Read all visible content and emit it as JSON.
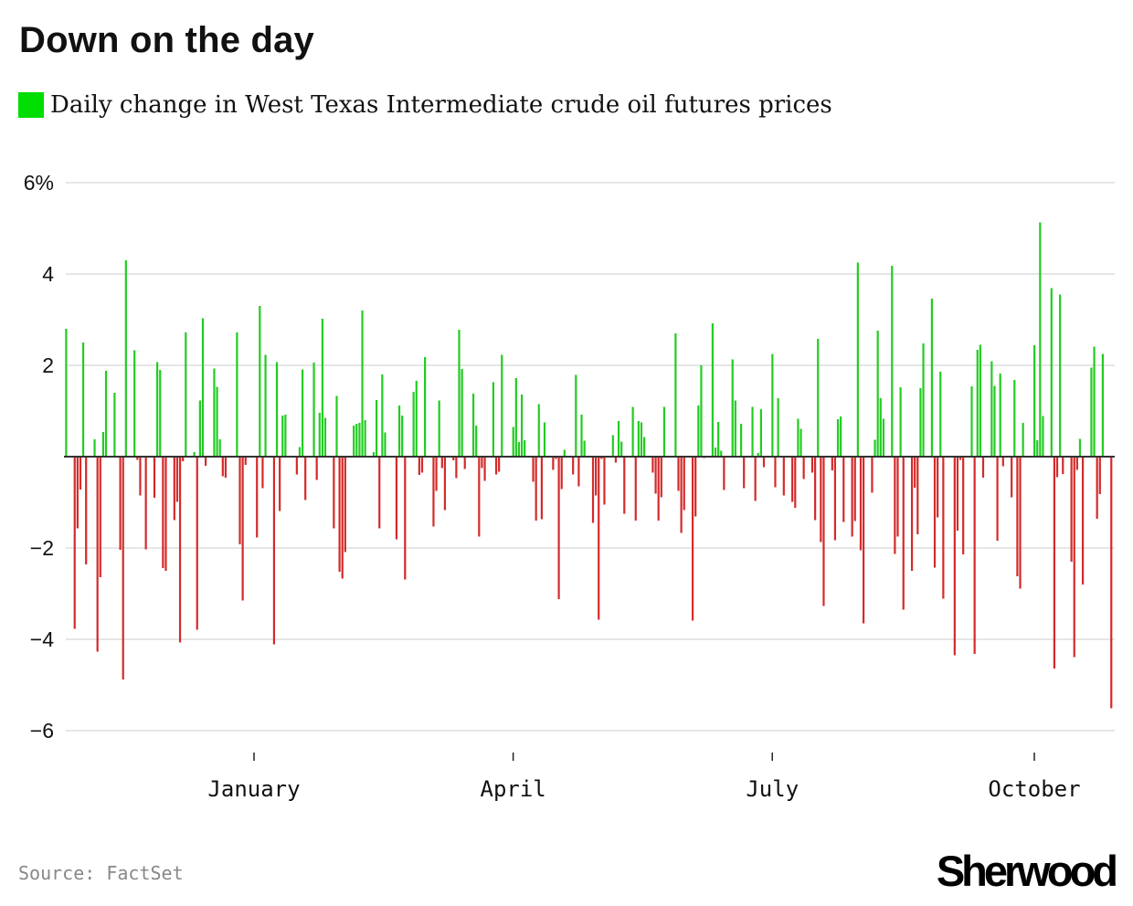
{
  "title": "Down on the day",
  "legend": {
    "label": "Daily change in West Texas Intermediate crude oil futures prices",
    "color": "#00dd00"
  },
  "source": "Source: FactSet",
  "logo": "Sherwood",
  "chart_data": {
    "type": "bar",
    "title": "Down on the day",
    "series_label": "Daily change in West Texas Intermediate crude oil futures prices",
    "xlabel": "",
    "ylabel": "",
    "ylim": [
      -6,
      6
    ],
    "xlim": [
      "2023-10-27",
      "2024-10-28"
    ],
    "grid": true,
    "legend_position": "top-left",
    "colors": {
      "positive": "#22cc22",
      "negative": "#d42a2a",
      "zero_line": "#333333",
      "grid": "#e6e6e6"
    },
    "y_ticks": [
      {
        "value": 6,
        "label": "6%"
      },
      {
        "value": 4,
        "label": "4"
      },
      {
        "value": 2,
        "label": "2"
      },
      {
        "value": -2,
        "label": "−2"
      },
      {
        "value": -4,
        "label": "−4"
      },
      {
        "value": -6,
        "label": "−6"
      }
    ],
    "x_ticks": [
      {
        "date": "2024-01-01",
        "label": "January"
      },
      {
        "date": "2024-04-01",
        "label": "April"
      },
      {
        "date": "2024-07-01",
        "label": "July"
      },
      {
        "date": "2024-10-01",
        "label": "October"
      }
    ],
    "points": [
      [
        "2023-10-27",
        2.8
      ],
      [
        "2023-10-30",
        -3.77
      ],
      [
        "2023-10-31",
        -1.57
      ],
      [
        "2023-11-01",
        -0.72
      ],
      [
        "2023-11-02",
        2.5
      ],
      [
        "2023-11-03",
        -2.36
      ],
      [
        "2023-11-06",
        0.38
      ],
      [
        "2023-11-07",
        -4.27
      ],
      [
        "2023-11-08",
        -2.64
      ],
      [
        "2023-11-09",
        0.54
      ],
      [
        "2023-11-10",
        1.88
      ],
      [
        "2023-11-13",
        1.4
      ],
      [
        "2023-11-15",
        -2.04
      ],
      [
        "2023-11-16",
        -4.88
      ],
      [
        "2023-11-17",
        4.3
      ],
      [
        "2023-11-20",
        2.33
      ],
      [
        "2023-11-21",
        -0.07
      ],
      [
        "2023-11-22",
        -0.85
      ],
      [
        "2023-11-24",
        -2.03
      ],
      [
        "2023-11-27",
        -0.9
      ],
      [
        "2023-11-28",
        2.07
      ],
      [
        "2023-11-29",
        1.9
      ],
      [
        "2023-11-30",
        -2.44
      ],
      [
        "2023-12-01",
        -2.5
      ],
      [
        "2023-12-04",
        -1.39
      ],
      [
        "2023-12-05",
        -0.99
      ],
      [
        "2023-12-06",
        -4.07
      ],
      [
        "2023-12-07",
        -0.1
      ],
      [
        "2023-12-08",
        2.72
      ],
      [
        "2023-12-11",
        0.1
      ],
      [
        "2023-12-12",
        -3.79
      ],
      [
        "2023-12-13",
        1.23
      ],
      [
        "2023-12-14",
        3.03
      ],
      [
        "2023-12-15",
        -0.2
      ],
      [
        "2023-12-18",
        1.93
      ],
      [
        "2023-12-19",
        1.53
      ],
      [
        "2023-12-20",
        0.38
      ],
      [
        "2023-12-21",
        -0.43
      ],
      [
        "2023-12-22",
        -0.46
      ],
      [
        "2023-12-26",
        2.72
      ],
      [
        "2023-12-27",
        -1.92
      ],
      [
        "2023-12-28",
        -3.15
      ],
      [
        "2023-12-29",
        -0.18
      ],
      [
        "2024-01-02",
        -1.77
      ],
      [
        "2024-01-03",
        3.3
      ],
      [
        "2024-01-04",
        -0.69
      ],
      [
        "2024-01-05",
        2.23
      ],
      [
        "2024-01-08",
        -4.11
      ],
      [
        "2024-01-09",
        2.07
      ],
      [
        "2024-01-10",
        -1.19
      ],
      [
        "2024-01-11",
        0.9
      ],
      [
        "2024-01-12",
        0.92
      ],
      [
        "2024-01-16",
        -0.39
      ],
      [
        "2024-01-17",
        0.21
      ],
      [
        "2024-01-18",
        1.91
      ],
      [
        "2024-01-19",
        -0.95
      ],
      [
        "2024-01-22",
        2.06
      ],
      [
        "2024-01-23",
        -0.51
      ],
      [
        "2024-01-24",
        0.96
      ],
      [
        "2024-01-25",
        3.02
      ],
      [
        "2024-01-26",
        0.85
      ],
      [
        "2024-01-29",
        -1.57
      ],
      [
        "2024-01-30",
        1.33
      ],
      [
        "2024-01-31",
        -2.52
      ],
      [
        "2024-02-01",
        -2.67
      ],
      [
        "2024-02-02",
        -2.09
      ],
      [
        "2024-02-05",
        0.68
      ],
      [
        "2024-02-06",
        0.72
      ],
      [
        "2024-02-07",
        0.74
      ],
      [
        "2024-02-08",
        3.2
      ],
      [
        "2024-02-09",
        0.8
      ],
      [
        "2024-02-12",
        0.1
      ],
      [
        "2024-02-13",
        1.24
      ],
      [
        "2024-02-14",
        -1.57
      ],
      [
        "2024-02-15",
        1.8
      ],
      [
        "2024-02-16",
        0.53
      ],
      [
        "2024-02-20",
        -1.81
      ],
      [
        "2024-02-21",
        1.12
      ],
      [
        "2024-02-22",
        0.9
      ],
      [
        "2024-02-23",
        -2.69
      ],
      [
        "2024-02-26",
        1.42
      ],
      [
        "2024-02-27",
        1.66
      ],
      [
        "2024-02-28",
        -0.4
      ],
      [
        "2024-02-29",
        -0.35
      ],
      [
        "2024-03-01",
        2.18
      ],
      [
        "2024-03-04",
        -1.53
      ],
      [
        "2024-03-05",
        -0.75
      ],
      [
        "2024-03-06",
        1.23
      ],
      [
        "2024-03-07",
        -0.25
      ],
      [
        "2024-03-08",
        -1.17
      ],
      [
        "2024-03-11",
        -0.08
      ],
      [
        "2024-03-12",
        -0.47
      ],
      [
        "2024-03-13",
        2.78
      ],
      [
        "2024-03-14",
        1.92
      ],
      [
        "2024-03-15",
        -0.27
      ],
      [
        "2024-03-18",
        1.38
      ],
      [
        "2024-03-19",
        0.68
      ],
      [
        "2024-03-20",
        -1.75
      ],
      [
        "2024-03-21",
        -0.25
      ],
      [
        "2024-03-22",
        -0.53
      ],
      [
        "2024-03-25",
        1.63
      ],
      [
        "2024-03-26",
        -0.39
      ],
      [
        "2024-03-27",
        -0.33
      ],
      [
        "2024-03-28",
        2.23
      ],
      [
        "2024-04-01",
        0.65
      ],
      [
        "2024-04-02",
        1.72
      ],
      [
        "2024-04-03",
        0.32
      ],
      [
        "2024-04-04",
        1.36
      ],
      [
        "2024-04-05",
        0.36
      ],
      [
        "2024-04-08",
        -0.55
      ],
      [
        "2024-04-09",
        -1.4
      ],
      [
        "2024-04-10",
        1.15
      ],
      [
        "2024-04-11",
        -1.37
      ],
      [
        "2024-04-12",
        0.75
      ],
      [
        "2024-04-15",
        -0.29
      ],
      [
        "2024-04-16",
        -0.05
      ],
      [
        "2024-04-17",
        -3.12
      ],
      [
        "2024-04-18",
        -0.71
      ],
      [
        "2024-04-19",
        0.15
      ],
      [
        "2024-04-22",
        -0.39
      ],
      [
        "2024-04-23",
        1.79
      ],
      [
        "2024-04-24",
        -0.65
      ],
      [
        "2024-04-25",
        0.92
      ],
      [
        "2024-04-26",
        0.35
      ],
      [
        "2024-04-29",
        -1.45
      ],
      [
        "2024-04-30",
        -0.85
      ],
      [
        "2024-05-01",
        -3.57
      ],
      [
        "2024-05-02",
        -0.05
      ],
      [
        "2024-05-03",
        -1.05
      ],
      [
        "2024-05-06",
        0.47
      ],
      [
        "2024-05-07",
        -0.13
      ],
      [
        "2024-05-08",
        0.78
      ],
      [
        "2024-05-09",
        0.33
      ],
      [
        "2024-05-10",
        -1.25
      ],
      [
        "2024-05-13",
        1.09
      ],
      [
        "2024-05-14",
        -1.4
      ],
      [
        "2024-05-15",
        0.78
      ],
      [
        "2024-05-16",
        0.75
      ],
      [
        "2024-05-17",
        0.43
      ],
      [
        "2024-05-20",
        -0.35
      ],
      [
        "2024-05-21",
        -0.81
      ],
      [
        "2024-05-22",
        -1.4
      ],
      [
        "2024-05-23",
        -0.89
      ],
      [
        "2024-05-24",
        1.09
      ],
      [
        "2024-05-28",
        2.7
      ],
      [
        "2024-05-29",
        -0.75
      ],
      [
        "2024-05-30",
        -1.67
      ],
      [
        "2024-05-31",
        -1.17
      ],
      [
        "2024-06-03",
        -3.59
      ],
      [
        "2024-06-04",
        -1.31
      ],
      [
        "2024-06-05",
        1.12
      ],
      [
        "2024-06-06",
        2.0
      ],
      [
        "2024-06-07",
        -0.03
      ],
      [
        "2024-06-10",
        2.92
      ],
      [
        "2024-06-11",
        0.2
      ],
      [
        "2024-06-12",
        0.76
      ],
      [
        "2024-06-13",
        0.13
      ],
      [
        "2024-06-14",
        -0.73
      ],
      [
        "2024-06-17",
        2.13
      ],
      [
        "2024-06-18",
        1.23
      ],
      [
        "2024-06-20",
        0.72
      ],
      [
        "2024-06-21",
        -0.69
      ],
      [
        "2024-06-24",
        1.09
      ],
      [
        "2024-06-25",
        -0.97
      ],
      [
        "2024-06-26",
        0.08
      ],
      [
        "2024-06-27",
        1.04
      ],
      [
        "2024-06-28",
        -0.23
      ],
      [
        "2024-07-01",
        2.25
      ],
      [
        "2024-07-02",
        -0.67
      ],
      [
        "2024-07-03",
        1.28
      ],
      [
        "2024-07-05",
        -0.85
      ],
      [
        "2024-07-08",
        -0.99
      ],
      [
        "2024-07-09",
        -1.12
      ],
      [
        "2024-07-10",
        0.83
      ],
      [
        "2024-07-11",
        0.61
      ],
      [
        "2024-07-12",
        -0.49
      ],
      [
        "2024-07-15",
        -0.35
      ],
      [
        "2024-07-16",
        -1.39
      ],
      [
        "2024-07-17",
        2.58
      ],
      [
        "2024-07-18",
        -1.87
      ],
      [
        "2024-07-19",
        -3.27
      ],
      [
        "2024-07-22",
        -0.3
      ],
      [
        "2024-07-23",
        -1.83
      ],
      [
        "2024-07-24",
        0.82
      ],
      [
        "2024-07-25",
        0.88
      ],
      [
        "2024-07-26",
        -1.43
      ],
      [
        "2024-07-29",
        -1.75
      ],
      [
        "2024-07-30",
        -1.41
      ],
      [
        "2024-07-31",
        4.25
      ],
      [
        "2024-08-01",
        -2.05
      ],
      [
        "2024-08-02",
        -3.65
      ],
      [
        "2024-08-05",
        -0.79
      ],
      [
        "2024-08-06",
        0.37
      ],
      [
        "2024-08-07",
        2.76
      ],
      [
        "2024-08-08",
        1.28
      ],
      [
        "2024-08-09",
        0.83
      ],
      [
        "2024-08-12",
        4.18
      ],
      [
        "2024-08-13",
        -2.13
      ],
      [
        "2024-08-14",
        -1.75
      ],
      [
        "2024-08-15",
        1.52
      ],
      [
        "2024-08-16",
        -3.35
      ],
      [
        "2024-08-19",
        -2.5
      ],
      [
        "2024-08-20",
        -0.68
      ],
      [
        "2024-08-21",
        -1.7
      ],
      [
        "2024-08-22",
        1.5
      ],
      [
        "2024-08-23",
        2.48
      ],
      [
        "2024-08-26",
        3.46
      ],
      [
        "2024-08-27",
        -2.43
      ],
      [
        "2024-08-28",
        -1.33
      ],
      [
        "2024-08-29",
        1.86
      ],
      [
        "2024-08-30",
        -3.11
      ],
      [
        "2024-09-03",
        -4.35
      ],
      [
        "2024-09-04",
        -1.62
      ],
      [
        "2024-09-05",
        -0.07
      ],
      [
        "2024-09-06",
        -2.14
      ],
      [
        "2024-09-09",
        1.54
      ],
      [
        "2024-09-10",
        -4.32
      ],
      [
        "2024-09-11",
        2.34
      ],
      [
        "2024-09-12",
        2.45
      ],
      [
        "2024-09-13",
        -0.46
      ],
      [
        "2024-09-16",
        2.09
      ],
      [
        "2024-09-17",
        1.55
      ],
      [
        "2024-09-18",
        -1.84
      ],
      [
        "2024-09-19",
        1.82
      ],
      [
        "2024-09-20",
        -0.21
      ],
      [
        "2024-09-23",
        -0.89
      ],
      [
        "2024-09-24",
        1.68
      ],
      [
        "2024-09-25",
        -2.62
      ],
      [
        "2024-09-26",
        -2.89
      ],
      [
        "2024-09-27",
        0.74
      ],
      [
        "2024-10-01",
        2.44
      ],
      [
        "2024-10-02",
        0.36
      ],
      [
        "2024-10-03",
        5.13
      ],
      [
        "2024-10-04",
        0.89
      ],
      [
        "2024-10-07",
        3.69
      ],
      [
        "2024-10-08",
        -4.64
      ],
      [
        "2024-10-09",
        -0.45
      ],
      [
        "2024-10-10",
        3.55
      ],
      [
        "2024-10-11",
        -0.38
      ],
      [
        "2024-10-14",
        -2.3
      ],
      [
        "2024-10-15",
        -4.39
      ],
      [
        "2024-10-16",
        -0.29
      ],
      [
        "2024-10-17",
        0.39
      ],
      [
        "2024-10-18",
        -2.8
      ],
      [
        "2024-10-21",
        1.95
      ],
      [
        "2024-10-22",
        2.41
      ],
      [
        "2024-10-23",
        -1.36
      ],
      [
        "2024-10-24",
        -0.82
      ],
      [
        "2024-10-25",
        2.25
      ],
      [
        "2024-10-28",
        -5.51
      ]
    ]
  }
}
